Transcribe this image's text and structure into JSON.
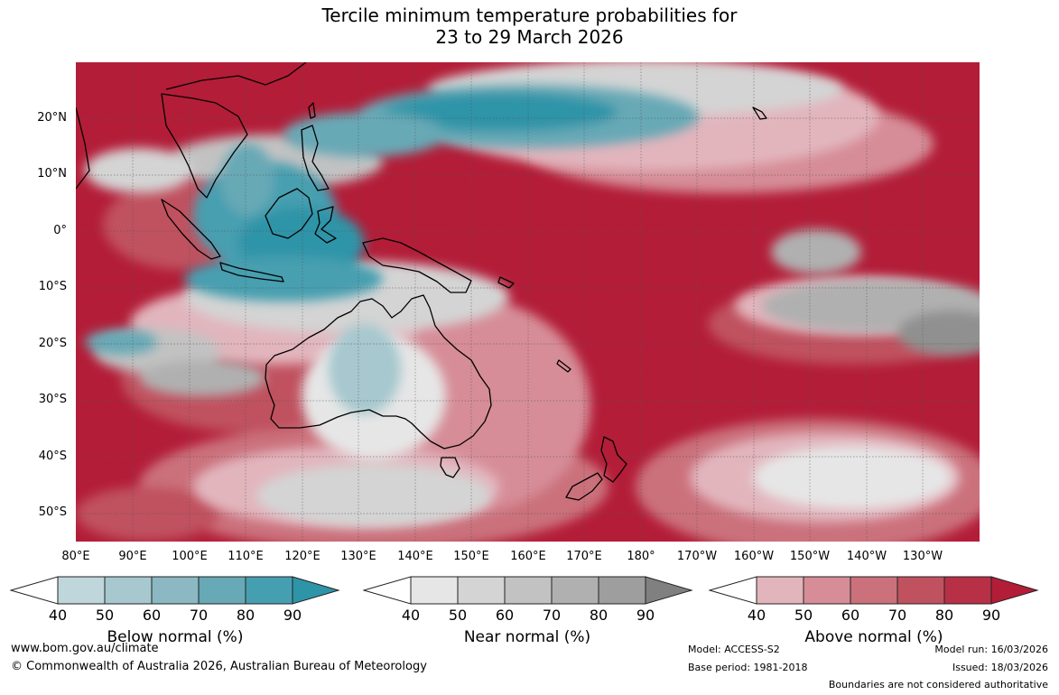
{
  "title": {
    "line1": "Tercile minimum temperature probabilities for",
    "line2": "23 to 29 March 2026"
  },
  "map": {
    "lat_labels": [
      "20°N",
      "10°N",
      "0°",
      "10°S",
      "20°S",
      "30°S",
      "40°S",
      "50°S"
    ],
    "lon_labels": [
      "80°E",
      "90°E",
      "100°E",
      "110°E",
      "120°E",
      "130°E",
      "140°E",
      "150°E",
      "160°E",
      "170°E",
      "180°",
      "170°W",
      "160°W",
      "150°W",
      "140°W",
      "130°W"
    ]
  },
  "legend": {
    "ticks": [
      "40",
      "50",
      "60",
      "70",
      "80",
      "90"
    ],
    "below": {
      "label": "Below normal (%)",
      "colors": [
        "#ffffff",
        "#bfd6db",
        "#a6c8ce",
        "#8bb8c2",
        "#67a9b6",
        "#469fb0",
        "#2e94a8"
      ]
    },
    "near": {
      "label": "Near normal (%)",
      "colors": [
        "#ffffff",
        "#e6e6e6",
        "#d4d4d4",
        "#c2c2c2",
        "#b0b0b0",
        "#9e9e9e",
        "#808080"
      ]
    },
    "above": {
      "label": "Above normal (%)",
      "colors": [
        "#ffffff",
        "#e2b5bd",
        "#d68d97",
        "#cb717b",
        "#c0515f",
        "#b83045",
        "#b31d38"
      ]
    }
  },
  "footer": {
    "website": "www.bom.gov.au/climate",
    "copyright": "© Commonwealth of Australia 2026, Australian Bureau of Meteorology",
    "model": "Model: ACCESS-S2",
    "base_period": "Base period: 1981-2018",
    "model_run": "Model run: 16/03/2026",
    "issued": "Issued: 18/03/2026",
    "disclaimer": "Boundaries are not considered authoritative"
  },
  "palette": {
    "red_dark": "#b31d38",
    "red_mid": "#c0515f",
    "red_light": "#d68d97",
    "pink": "#e2b5bd",
    "teal_dark": "#2e94a8",
    "teal_mid": "#67a9b6",
    "teal_light": "#a6c8ce",
    "gray_dark": "#808080",
    "gray_mid": "#a8a8a8",
    "gray_light": "#d4d4d4",
    "white": "#ffffff",
    "coast": "#000000",
    "grid": "#555555"
  }
}
